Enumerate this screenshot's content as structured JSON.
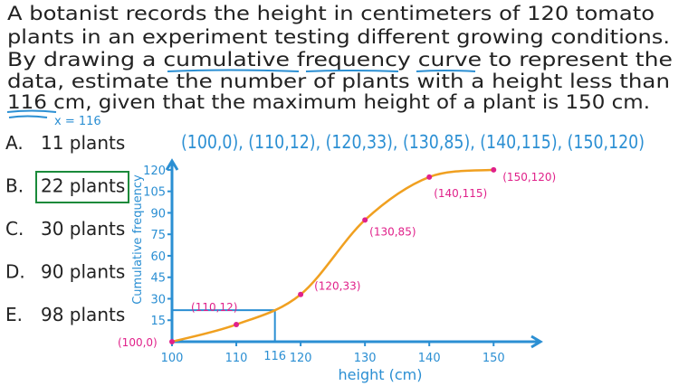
{
  "question": [
    "A botanist records the height in centimeters of 120 tomato",
    "plants in an experiment testing different growing conditions.",
    "By drawing a cumulative frequency curve to represent the",
    "data, estimate the number of plants with a height less than",
    "116 cm, given that the maximum height of a plant is 150 cm."
  ],
  "annotation": "x = 116",
  "options": [
    {
      "letter": "A.",
      "text": "11 plants"
    },
    {
      "letter": "B.",
      "text": "22 plants"
    },
    {
      "letter": "C.",
      "text": "30 plants"
    },
    {
      "letter": "D.",
      "text": "90 plants"
    },
    {
      "letter": "E.",
      "text": "98 plants"
    }
  ],
  "points_text": "(100,0), (110,12), (120,33), (130,85), (140,115), (150,120)",
  "chart_data": {
    "type": "line",
    "xlabel": "height (cm)",
    "ylabel": "Cumulative frequency",
    "x": [
      100,
      110,
      120,
      130,
      140,
      150
    ],
    "values": [
      0,
      12,
      33,
      85,
      115,
      120
    ],
    "value_labels": [
      "(100,0)",
      "(110,12)",
      "(120,33)",
      "(130,85)",
      "(140,115)",
      "(150,120)"
    ],
    "color": "#f0a020",
    "xlim": [
      100,
      157
    ],
    "ylim": [
      0,
      125
    ],
    "xticks": [
      100,
      110,
      120,
      130,
      140,
      150
    ],
    "yticks": [
      15,
      30,
      45,
      60,
      75,
      90,
      105,
      120
    ],
    "reading": {
      "x": 116,
      "y": 22
    }
  }
}
